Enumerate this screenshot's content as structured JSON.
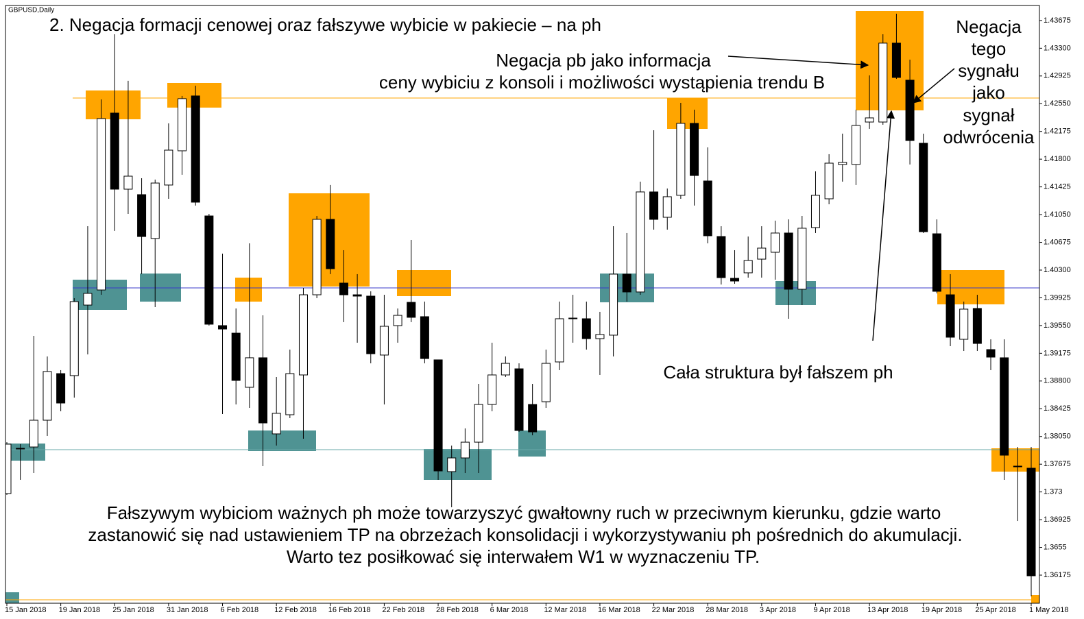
{
  "chart_data": {
    "type": "candlestick",
    "title": "GBPUSD,Daily",
    "categories": [
      "15 Jan 2018",
      null,
      null,
      null,
      "19 Jan 2018",
      null,
      null,
      null,
      "25 Jan 2018",
      null,
      null,
      null,
      "31 Jan 2018",
      null,
      null,
      null,
      "6 Feb 2018",
      null,
      null,
      null,
      "12 Feb 2018",
      null,
      null,
      null,
      "16 Feb 2018",
      null,
      null,
      null,
      "22 Feb 2018",
      null,
      null,
      null,
      "28 Feb 2018",
      null,
      null,
      null,
      "6 Mar 2018",
      null,
      null,
      null,
      "12 Mar 2018",
      null,
      null,
      null,
      "16 Mar 2018",
      null,
      null,
      null,
      "22 Mar 2018",
      null,
      null,
      null,
      "28 Mar 2018",
      null,
      null,
      null,
      "3 Apr 2018",
      null,
      null,
      null,
      "9 Apr 2018",
      null,
      null,
      null,
      "13 Apr 2018",
      null,
      null,
      null,
      "19 Apr 2018",
      null,
      null,
      null,
      "25 Apr 2018",
      null,
      null,
      null,
      "1 May 2018"
    ],
    "open": [
      1.37278,
      1.37881,
      1.37908,
      1.3827,
      1.389,
      1.38873,
      1.39827,
      1.40031,
      1.42423,
      1.41394,
      1.4132,
      1.40727,
      1.4145,
      1.41913,
      1.42655,
      1.41032,
      1.39549,
      1.39447,
      1.38715,
      1.39114,
      1.38085,
      1.38344,
      1.38882,
      1.39966,
      1.40986,
      1.40124,
      1.39966,
      1.39948,
      1.39151,
      1.39549,
      1.39864,
      1.3967,
      1.39086,
      1.37575,
      1.3776,
      1.37973,
      1.38483,
      1.38882,
      1.38965,
      1.38483,
      1.3852,
      1.39058,
      1.39642,
      1.39642,
      1.39373,
      1.3942,
      1.40245,
      1.40004,
      1.41357,
      1.41014,
      1.41311,
      1.42284,
      1.41505,
      1.40754,
      1.40189,
      1.40263,
      1.40448,
      1.40541,
      1.40801,
      1.40041,
      1.40875,
      1.41264,
      1.41728,
      1.41728,
      1.42302,
      1.42302,
      1.43369,
      1.42868,
      1.42015,
      1.40791,
      1.39966,
      1.39364,
      1.39781,
      1.39225,
      1.39114,
      1.37649,
      1.37621
    ],
    "high": [
      1.37973,
      1.37946,
      1.3941,
      1.39132,
      1.38947,
      1.3992,
      1.40893,
      1.42608,
      1.43489,
      1.42859,
      1.41542,
      1.41524,
      1.42284,
      1.42655,
      1.42794,
      1.4106,
      1.40523,
      1.39781,
      1.40662,
      1.39688,
      1.38854,
      1.39225,
      1.40059,
      1.41032,
      1.4145,
      1.40569,
      1.40245,
      1.40013,
      1.39966,
      1.39781,
      1.40708,
      1.39874,
      1.39086,
      1.37927,
      1.38159,
      1.38761,
      1.39318,
      1.39132,
      1.39039,
      1.38761,
      1.39225,
      1.39874,
      1.39966,
      1.39874,
      1.39735,
      1.40893,
      1.40801,
      1.41496,
      1.42191,
      1.41403,
      1.42562,
      1.42469,
      1.41959,
      1.40893,
      1.40569,
      1.40754,
      1.40893,
      1.40968,
      1.40986,
      1.41032,
      1.41635,
      1.41867,
      1.42145,
      1.42469,
      1.42933,
      1.43489,
      1.43767,
      1.43146,
      1.42145,
      1.40986,
      1.40245,
      1.39874,
      1.39966,
      1.39364,
      1.39364,
      1.37908,
      1.37908
    ],
    "low": [
      1.3726,
      1.37464,
      1.37556,
      1.38057,
      1.38391,
      1.38576,
      1.3916,
      1.39966,
      1.40829,
      1.4106,
      1.40245,
      1.398,
      1.41264,
      1.41589,
      1.41172,
      1.39549,
      1.38353,
      1.38483,
      1.38437,
      1.37649,
      1.37927,
      1.38298,
      1.3802,
      1.3992,
      1.40245,
      1.39596,
      1.39318,
      1.39039,
      1.38483,
      1.39318,
      1.39596,
      1.39039,
      1.37464,
      1.37093,
      1.37556,
      1.37556,
      1.38391,
      1.38854,
      1.38112,
      1.38066,
      1.38437,
      1.38947,
      1.39318,
      1.39225,
      1.38882,
      1.39132,
      1.39874,
      1.39966,
      1.40847,
      1.40847,
      1.41264,
      1.41172,
      1.40662,
      1.40105,
      1.40115,
      1.40198,
      1.40198,
      1.4017,
      1.39642,
      1.39827,
      1.40801,
      1.4119,
      1.41496,
      1.4145,
      1.4221,
      1.42265,
      1.42886,
      1.41728,
      1.40801,
      1.39985,
      1.39271,
      1.39206,
      1.39206,
      1.38947,
      1.37464,
      1.36907,
      1.35888
    ],
    "close": [
      1.37946,
      1.3789,
      1.3827,
      1.38928,
      1.38502,
      1.39874,
      1.39985,
      1.42349,
      1.41394,
      1.4157,
      1.40754,
      1.41477,
      1.41922,
      1.42618,
      1.41218,
      1.39568,
      1.39503,
      1.38808,
      1.39114,
      1.38233,
      1.38363,
      1.389,
      1.39966,
      1.40986,
      1.40319,
      1.39966,
      1.39948,
      1.39169,
      1.3954,
      1.39688,
      1.39661,
      1.39104,
      1.37584,
      1.3776,
      1.37973,
      1.38483,
      1.38882,
      1.39039,
      1.38131,
      1.38112,
      1.39039,
      1.39642,
      1.39651,
      1.39373,
      1.39429,
      1.40245,
      1.40004,
      1.41357,
      1.40986,
      1.41292,
      1.42284,
      1.41579,
      1.40764,
      1.40198,
      1.40152,
      1.4043,
      1.40597,
      1.40801,
      1.40041,
      1.40866,
      1.41311,
      1.41746,
      1.41756,
      1.42256,
      1.42358,
      1.43369,
      1.42905,
      1.42052,
      1.40819,
      1.40013,
      1.39392,
      1.39772,
      1.39308,
      1.39123,
      1.37797,
      1.3764,
      1.36166
    ],
    "up_color": "#ffffff",
    "down_color": "#000000",
    "ylim": [
      1.35795,
      1.43878
    ],
    "yticks": [
      1.36175,
      1.3655,
      1.36925,
      1.373,
      1.37675,
      {
        "value": 1.3805,
        "label": "1.38050"
      },
      1.38425,
      {
        "value": 1.388,
        "label": "1.38800"
      },
      1.39175,
      {
        "value": 1.3955,
        "label": "1.39550"
      },
      1.39925,
      {
        "value": 1.403,
        "label": "1.40300"
      },
      1.40675,
      {
        "value": 1.4105,
        "label": "1.41050"
      },
      1.41425,
      {
        "value": 1.418,
        "label": "1.41800"
      },
      1.42175,
      {
        "value": 1.4255,
        "label": "1.42550"
      },
      1.42925,
      {
        "value": 1.433,
        "label": "1.43300"
      },
      1.43675
    ],
    "annotations": [
      {
        "lines": [
          "2. Negacja formacji cenowej oraz fałszywe wybicie w pakiecie – na ph"
        ]
      },
      {
        "lines": [
          "Negacja pb jako informacja",
          "ceny wybiciu z konsoli i możliwości wystąpienia trendu B"
        ]
      },
      {
        "lines": [
          "Negacja",
          "tego",
          "sygnału",
          "jako",
          "sygnał",
          "odwrócenia"
        ]
      },
      {
        "lines": [
          "Cała struktura był fałszem ph"
        ]
      },
      {
        "lines": [
          "Fałszywym wybiciom ważnych ph może towarzyszyć gwałtowny ruch w przeciwnym kierunku, gdzie warto",
          "zastanowić się nad ustawieniem TP na obrzeżach konsolidacji i wykorzystywaniu ph pośrednich do akumulacji.",
          "Warto tez posiłkować się interwałem W1 w wyznaczeniu TP."
        ]
      }
    ]
  }
}
